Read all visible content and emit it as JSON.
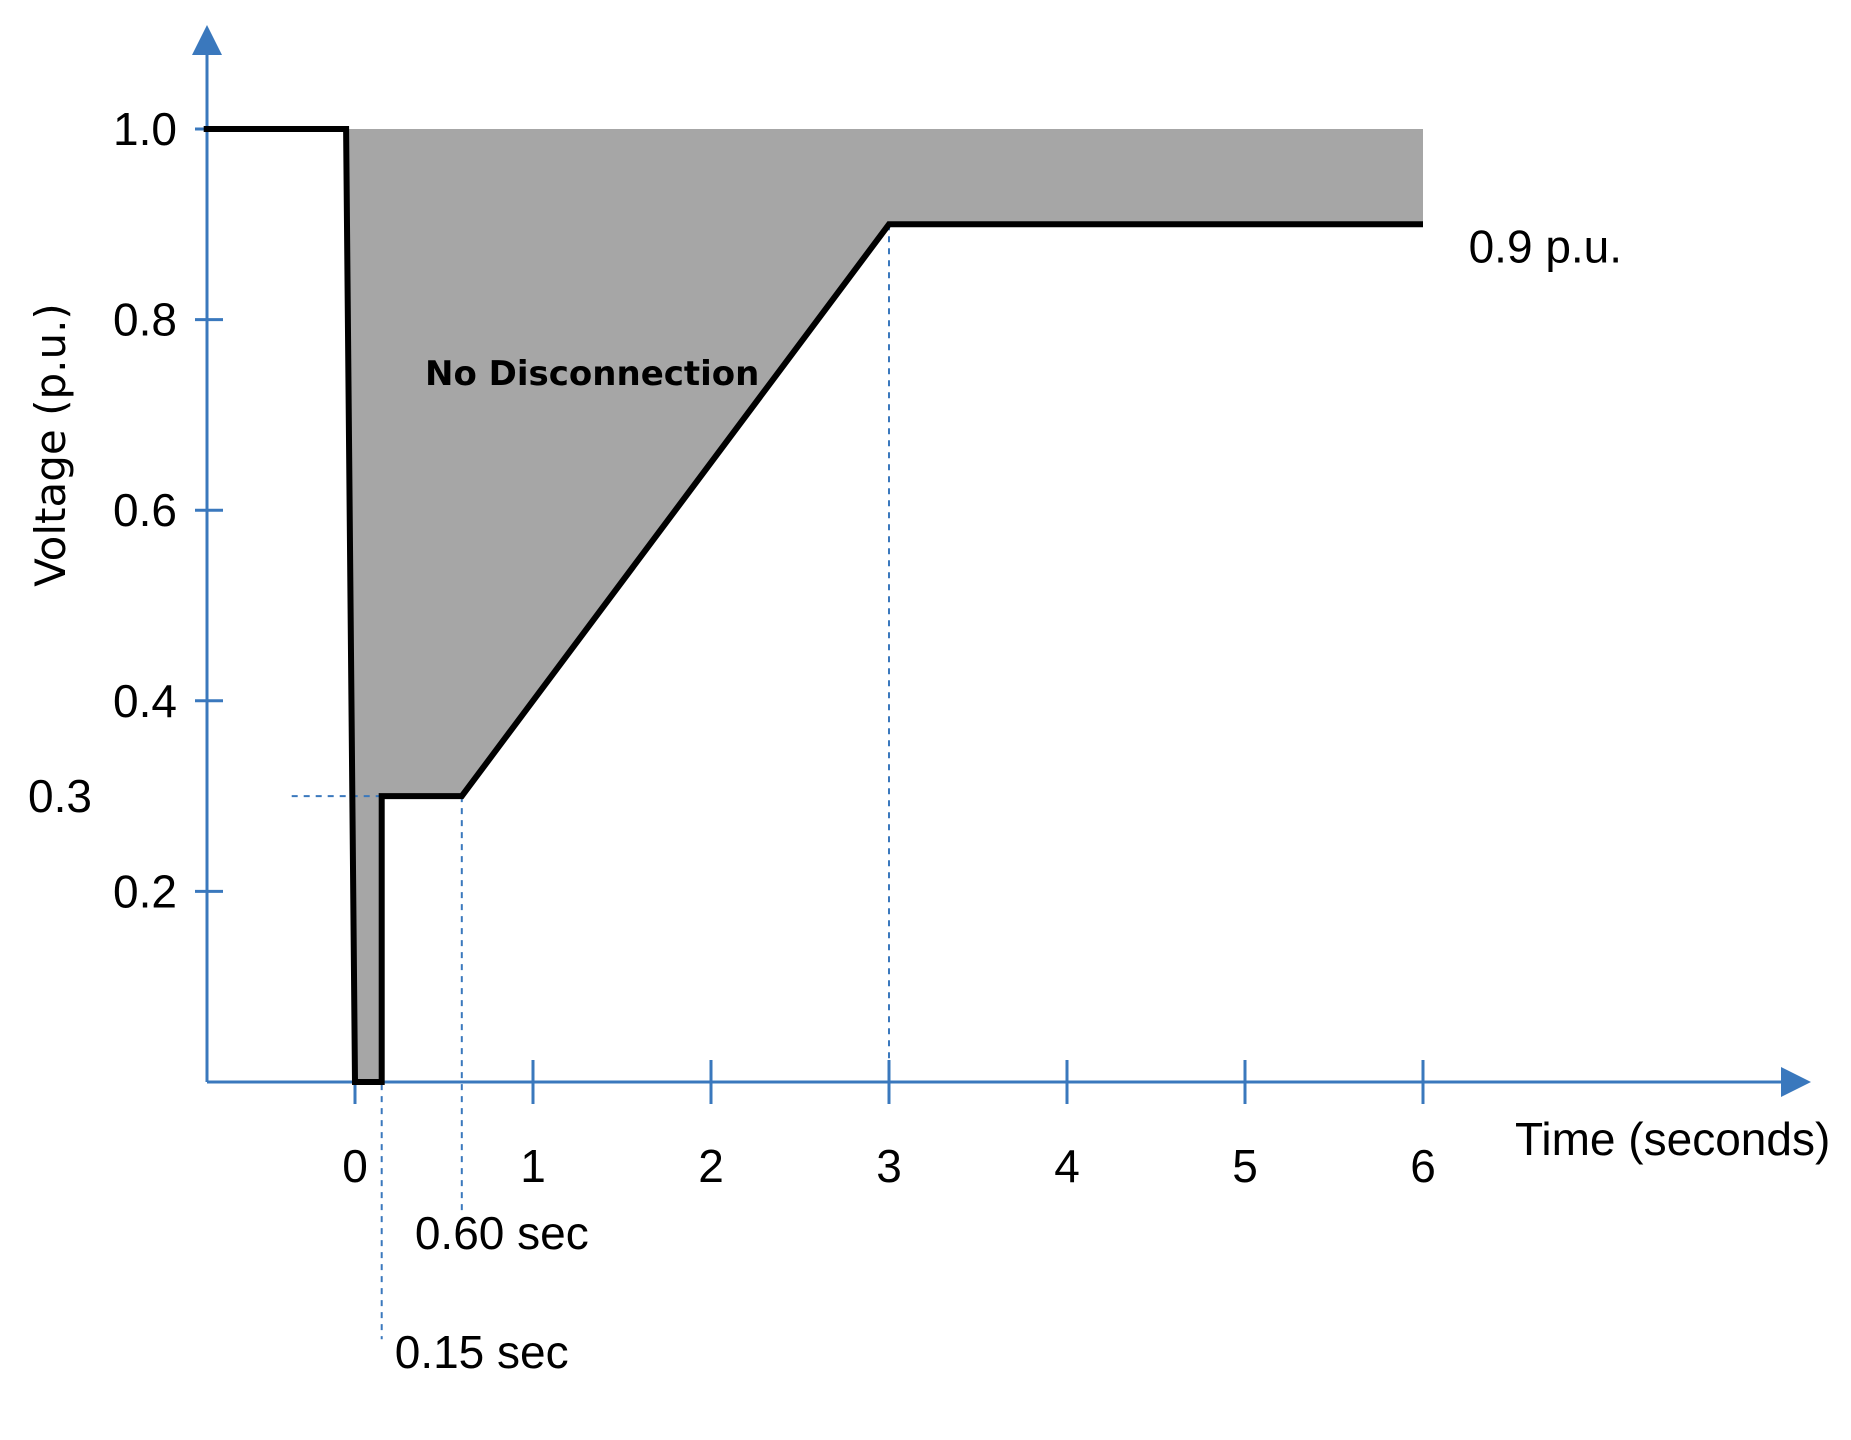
{
  "chart_data": {
    "type": "line",
    "xlabel": "Time (seconds)",
    "ylabel": "Voltage (p.u.)",
    "xlim": [
      -0.85,
      8.4
    ],
    "ylim": [
      0,
      1.12
    ],
    "x_ticks": [
      0,
      1,
      2,
      3,
      4,
      5,
      6
    ],
    "x_tick_labels": [
      "0",
      "1",
      "2",
      "3",
      "4",
      "5",
      "6"
    ],
    "y_ticks": [
      0.2,
      0.4,
      0.6,
      0.8,
      1.0
    ],
    "y_tick_labels": [
      "0.2",
      "0.4",
      "0.6",
      "0.8",
      "1.0"
    ],
    "series": [
      {
        "points": [
          {
            "x": -0.85,
            "y": 1.0
          },
          {
            "x": -0.05,
            "y": 1.0
          },
          {
            "x": 0.0,
            "y": 0.0
          },
          {
            "x": 0.15,
            "y": 0.0
          },
          {
            "x": 0.15,
            "y": 0.3
          },
          {
            "x": 0.6,
            "y": 0.3
          },
          {
            "x": 3.0,
            "y": 0.9
          },
          {
            "x": 6.0,
            "y": 0.9
          }
        ]
      }
    ],
    "shaded_region": {
      "label": "No Disconnection",
      "points": [
        {
          "x": -0.05,
          "y": 1.0
        },
        {
          "x": 6.0,
          "y": 1.0
        },
        {
          "x": 6.0,
          "y": 0.9
        },
        {
          "x": 3.0,
          "y": 0.9
        },
        {
          "x": 0.6,
          "y": 0.3
        },
        {
          "x": 0.15,
          "y": 0.3
        },
        {
          "x": 0.15,
          "y": 0.0
        },
        {
          "x": 0.0,
          "y": 0.0
        }
      ]
    },
    "reference_lines": [
      {
        "orientation": "horizontal",
        "y": 0.3,
        "x_from": -0.85,
        "x_to": 0.15,
        "label": "0.3"
      },
      {
        "orientation": "vertical",
        "x": 0.15,
        "y_from": 0.3,
        "y_to": -0.27,
        "label": "0.15 sec"
      },
      {
        "orientation": "vertical",
        "x": 0.6,
        "y_from": 0.3,
        "y_to": -0.14,
        "label": "0.60 sec"
      },
      {
        "orientation": "vertical",
        "x": 3.0,
        "y_from": 0.9,
        "y_to": 0.0
      }
    ],
    "annotations": [
      {
        "text": "0.9 p.u.",
        "x": 6.2,
        "y": 0.86
      }
    ],
    "colors": {
      "axis": "#3a78bd",
      "line": "#000000",
      "fill": "#a6a6a6",
      "reference": "#3a78bd"
    },
    "grid": false,
    "legend": "none"
  }
}
